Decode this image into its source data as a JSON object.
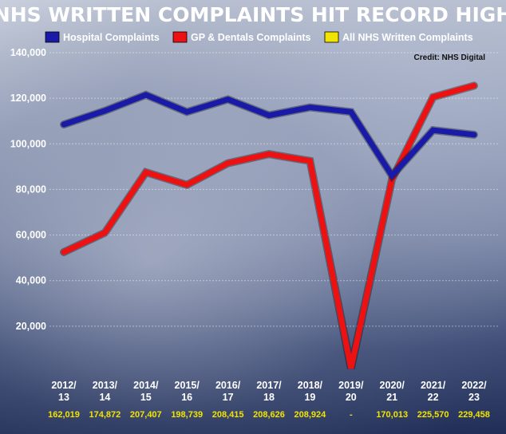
{
  "chart_data": {
    "type": "line",
    "title": "NHS WRITTEN COMPLAINTS HIT RECORD HIGH",
    "credit": "Credit: NHS Digital",
    "categories": [
      [
        "2012/",
        "13"
      ],
      [
        "2013/",
        "14"
      ],
      [
        "2014/",
        "15"
      ],
      [
        "2015/",
        "16"
      ],
      [
        "2016/",
        "17"
      ],
      [
        "2017/",
        "18"
      ],
      [
        "2018/",
        "19"
      ],
      [
        "2019/",
        "20"
      ],
      [
        "2020/",
        "21"
      ],
      [
        "2021/",
        "22"
      ],
      [
        "2022/",
        "23"
      ]
    ],
    "ylim": [
      0,
      140000
    ],
    "yticks": [
      "20,000",
      "40,000",
      "60,000",
      "80,000",
      "100,000",
      "120,000",
      "140,000"
    ],
    "ytick_values": [
      20000,
      40000,
      60000,
      80000,
      100000,
      120000,
      140000
    ],
    "legend_position": "top",
    "series": [
      {
        "name": "Hospital Complaints",
        "color": "#1a1aa8",
        "values": [
          108500,
          114500,
          121500,
          114000,
          119500,
          112500,
          116000,
          114000,
          86000,
          106000,
          104000
        ]
      },
      {
        "name": "GP & Dentals Complaints",
        "color": "#ee1111",
        "values": [
          52500,
          61000,
          87500,
          82000,
          91500,
          95500,
          92500,
          1500,
          84500,
          120500,
          125500
        ]
      },
      {
        "name": "All NHS Written Complaints",
        "color": "#f2e400",
        "values": [
          "162,019",
          "174,872",
          "207,407",
          "198,739",
          "208,415",
          "208,626",
          "208,924",
          "-",
          "170,013",
          "225,570",
          "229,458"
        ]
      }
    ]
  }
}
